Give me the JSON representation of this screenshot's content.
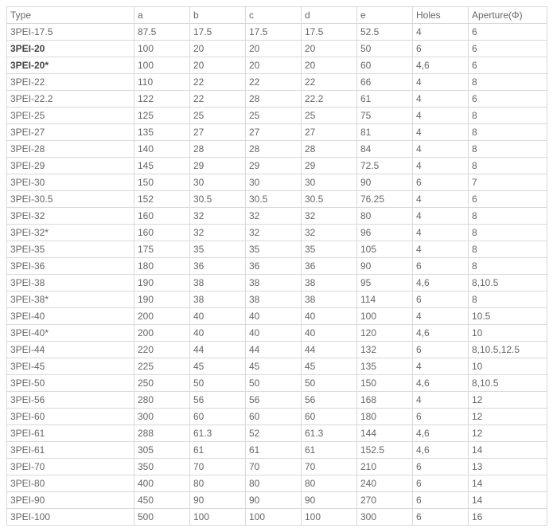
{
  "table": {
    "columns": [
      "Type",
      "a",
      "b",
      "c",
      "d",
      "e",
      "Holes",
      "Aperture(Φ)"
    ],
    "rows": [
      {
        "bold": false,
        "cells": [
          "3PEI-17.5",
          "87.5",
          "17.5",
          "17.5",
          "17.5",
          "52.5",
          "4",
          "6"
        ]
      },
      {
        "bold": true,
        "cells": [
          "3PEI-20",
          "100",
          "20",
          "20",
          "20",
          "50",
          "6",
          "6"
        ]
      },
      {
        "bold": true,
        "cells": [
          "3PEI-20*",
          "100",
          "20",
          "20",
          "20",
          "60",
          "4,6",
          "6"
        ]
      },
      {
        "bold": false,
        "cells": [
          "3PEI-22",
          "110",
          "22",
          "22",
          "22",
          "66",
          "4",
          "8"
        ]
      },
      {
        "bold": false,
        "cells": [
          "3PEI-22.2",
          "122",
          "22",
          "28",
          "22.2",
          "61",
          "4",
          "6"
        ]
      },
      {
        "bold": false,
        "cells": [
          "3PEI-25",
          "125",
          "25",
          "25",
          "25",
          "75",
          "4",
          "8"
        ]
      },
      {
        "bold": false,
        "cells": [
          "3PEI-27",
          "135",
          "27",
          "27",
          "27",
          "81",
          "4",
          "8"
        ]
      },
      {
        "bold": false,
        "cells": [
          "3PEI-28",
          "140",
          "28",
          "28",
          "28",
          "84",
          "4",
          "8"
        ]
      },
      {
        "bold": false,
        "cells": [
          "3PEI-29",
          "145",
          "29",
          "29",
          "29",
          "72.5",
          "4",
          "8"
        ]
      },
      {
        "bold": false,
        "cells": [
          "3PEI-30",
          "150",
          "30",
          "30",
          "30",
          "90",
          "6",
          "7"
        ]
      },
      {
        "bold": false,
        "cells": [
          "3PEI-30.5",
          "152",
          "30.5",
          "30.5",
          "30.5",
          "76.25",
          "4",
          "6"
        ]
      },
      {
        "bold": false,
        "cells": [
          "3PEI-32",
          "160",
          "32",
          "32",
          "32",
          "80",
          "4",
          "8"
        ]
      },
      {
        "bold": false,
        "cells": [
          "3PEI-32*",
          "160",
          "32",
          "32",
          "32",
          "96",
          "4",
          "8"
        ]
      },
      {
        "bold": false,
        "cells": [
          "3PEI-35",
          "175",
          "35",
          "35",
          "35",
          "105",
          "4",
          "8"
        ]
      },
      {
        "bold": false,
        "cells": [
          "3PEI-36",
          "180",
          "36",
          "36",
          "36",
          "90",
          "6",
          "8"
        ]
      },
      {
        "bold": false,
        "cells": [
          "3PEI-38",
          "190",
          "38",
          "38",
          "38",
          "95",
          "4,6",
          "8,10.5"
        ]
      },
      {
        "bold": false,
        "cells": [
          "3PEI-38*",
          "190",
          "38",
          "38",
          "38",
          "114",
          "6",
          "8"
        ]
      },
      {
        "bold": false,
        "cells": [
          "3PEI-40",
          "200",
          "40",
          "40",
          "40",
          "100",
          "4",
          "10.5"
        ]
      },
      {
        "bold": false,
        "cells": [
          "3PEI-40*",
          "200",
          "40",
          "40",
          "40",
          "120",
          "4,6",
          "10"
        ]
      },
      {
        "bold": false,
        "cells": [
          "3PEI-44",
          "220",
          "44",
          "44",
          "44",
          "132",
          "6",
          "8,10.5,12.5"
        ]
      },
      {
        "bold": false,
        "cells": [
          "3PEI-45",
          "225",
          "45",
          "45",
          "45",
          "135",
          "4",
          "10"
        ]
      },
      {
        "bold": false,
        "cells": [
          "3PEI-50",
          "250",
          "50",
          "50",
          "50",
          "150",
          "4,6",
          "8,10.5"
        ]
      },
      {
        "bold": false,
        "cells": [
          "3PEI-56",
          "280",
          "56",
          "56",
          "56",
          "168",
          "4",
          "12"
        ]
      },
      {
        "bold": false,
        "cells": [
          "3PEI-60",
          "300",
          "60",
          "60",
          "60",
          "180",
          "6",
          "12"
        ]
      },
      {
        "bold": false,
        "cells": [
          "3PEI-61",
          "288",
          "61.3",
          "52",
          "61.3",
          "144",
          "4,6",
          "12"
        ]
      },
      {
        "bold": false,
        "cells": [
          "3PEI-61",
          "305",
          "61",
          "61",
          "61",
          "152.5",
          "4,6",
          "14"
        ]
      },
      {
        "bold": false,
        "cells": [
          "3PEI-70",
          "350",
          "70",
          "70",
          "70",
          "210",
          "6",
          "13"
        ]
      },
      {
        "bold": false,
        "cells": [
          "3PEI-80",
          "400",
          "80",
          "80",
          "80",
          "240",
          "6",
          "14"
        ]
      },
      {
        "bold": false,
        "cells": [
          "3PEI-90",
          "450",
          "90",
          "90",
          "90",
          "270",
          "6",
          "14"
        ]
      },
      {
        "bold": false,
        "cells": [
          "3PEI-100",
          "500",
          "100",
          "100",
          "100",
          "300",
          "6",
          "16"
        ]
      }
    ]
  }
}
